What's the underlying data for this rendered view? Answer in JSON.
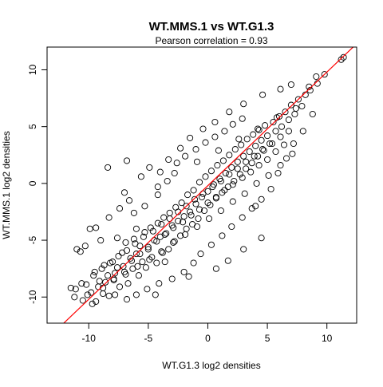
{
  "chart_data": {
    "type": "scatter",
    "title": "WT.MMS.1 vs WT.G1.3",
    "subtitle": "Pearson correlation =  0.93",
    "xlabel": "WT.G1.3 log2 densities",
    "ylabel": "WT.MMS.1 log2 densities",
    "xlim": [
      -13.5,
      12.5
    ],
    "ylim": [
      -12.3,
      12.0
    ],
    "x_ticks": [
      -10,
      -5,
      0,
      5,
      10
    ],
    "y_ticks": [
      -10,
      -5,
      0,
      5,
      10
    ],
    "grid": false,
    "marker": "open-circle",
    "point_color": "#000000",
    "fit_line": {
      "intercept": -0.2,
      "slope": 1.0,
      "color": "#ff0000"
    },
    "pearson_r": 0.93,
    "points": [
      [
        -11.5,
        -9.2
      ],
      [
        -11.2,
        -10.0
      ],
      [
        -10.5,
        -10.3
      ],
      [
        -10.2,
        -8.9
      ],
      [
        -9.8,
        -9.6
      ],
      [
        -9.5,
        -7.8
      ],
      [
        -9.4,
        -10.4
      ],
      [
        -9.1,
        -8.6
      ],
      [
        -8.8,
        -9.2
      ],
      [
        -8.7,
        -7.2
      ],
      [
        -8.4,
        -8.1
      ],
      [
        -8.3,
        -9.9
      ],
      [
        -8.0,
        -6.9
      ],
      [
        -7.9,
        -8.5
      ],
      [
        -7.6,
        -7.4
      ],
      [
        -7.4,
        -9.1
      ],
      [
        -7.2,
        -6.1
      ],
      [
        -7.0,
        -7.8
      ],
      [
        -6.9,
        -5.2
      ],
      [
        -6.7,
        -8.8
      ],
      [
        -6.5,
        -6.6
      ],
      [
        -6.3,
        -7.5
      ],
      [
        -6.2,
        -4.9
      ],
      [
        -6.0,
        -6.2
      ],
      [
        -5.8,
        -8.1
      ],
      [
        -5.7,
        -5.5
      ],
      [
        -5.5,
        -6.9
      ],
      [
        -5.3,
        -4.3
      ],
      [
        -5.2,
        -7.4
      ],
      [
        -5.0,
        -5.8
      ],
      [
        -4.8,
        -3.9
      ],
      [
        -4.7,
        -6.5
      ],
      [
        -4.5,
        -5.0
      ],
      [
        -4.3,
        -7.0
      ],
      [
        -4.2,
        -3.5
      ],
      [
        -4.0,
        -4.7
      ],
      [
        -3.8,
        -6.1
      ],
      [
        -3.7,
        -3.0
      ],
      [
        -3.5,
        -4.4
      ],
      [
        -3.3,
        -5.8
      ],
      [
        -3.2,
        -2.6
      ],
      [
        -3.0,
        -3.7
      ],
      [
        -2.8,
        -5.1
      ],
      [
        -2.7,
        -2.1
      ],
      [
        -2.5,
        -3.3
      ],
      [
        -2.3,
        -4.6
      ],
      [
        -2.2,
        -1.7
      ],
      [
        -2.0,
        -2.9
      ],
      [
        -1.8,
        -4.0
      ],
      [
        -1.7,
        -1.0
      ],
      [
        -1.5,
        -2.5
      ],
      [
        -1.3,
        -3.6
      ],
      [
        -1.2,
        -0.6
      ],
      [
        -1.0,
        -1.8
      ],
      [
        -0.8,
        -3.1
      ],
      [
        -0.7,
        0.1
      ],
      [
        -0.5,
        -1.2
      ],
      [
        -0.3,
        -2.4
      ],
      [
        -0.2,
        0.6
      ],
      [
        0.0,
        -0.7
      ],
      [
        0.2,
        -1.9
      ],
      [
        0.3,
        1.1
      ],
      [
        0.5,
        -0.1
      ],
      [
        0.7,
        -1.3
      ],
      [
        0.8,
        1.6
      ],
      [
        1.0,
        0.4
      ],
      [
        1.2,
        -0.8
      ],
      [
        1.3,
        2.0
      ],
      [
        1.5,
        0.9
      ],
      [
        1.7,
        -0.3
      ],
      [
        1.8,
        2.5
      ],
      [
        2.0,
        1.4
      ],
      [
        2.2,
        0.2
      ],
      [
        2.3,
        3.0
      ],
      [
        2.5,
        1.9
      ],
      [
        2.7,
        0.8
      ],
      [
        2.8,
        3.4
      ],
      [
        3.0,
        2.4
      ],
      [
        3.2,
        1.3
      ],
      [
        3.3,
        3.9
      ],
      [
        3.5,
        2.8
      ],
      [
        3.7,
        1.8
      ],
      [
        3.8,
        4.3
      ],
      [
        4.0,
        3.3
      ],
      [
        4.2,
        2.4
      ],
      [
        4.3,
        4.7
      ],
      [
        4.5,
        3.8
      ],
      [
        4.7,
        2.9
      ],
      [
        4.8,
        5.1
      ],
      [
        5.0,
        4.2
      ],
      [
        5.2,
        3.5
      ],
      [
        5.5,
        5.4
      ],
      [
        5.7,
        4.6
      ],
      [
        6.0,
        5.9
      ],
      [
        6.2,
        5.0
      ],
      [
        6.5,
        6.3
      ],
      [
        6.8,
        5.6
      ],
      [
        7.0,
        6.9
      ],
      [
        7.3,
        6.1
      ],
      [
        7.6,
        7.4
      ],
      [
        7.9,
        6.8
      ],
      [
        8.2,
        7.8
      ],
      [
        8.6,
        8.2
      ],
      [
        9.2,
        8.8
      ],
      [
        9.8,
        9.6
      ],
      [
        11.2,
        10.9
      ],
      [
        11.4,
        11.1
      ]
    ],
    "scatter_points": [
      [
        -11.1,
        -9.3
      ],
      [
        -10.6,
        -8.8
      ],
      [
        -10.1,
        -9.8
      ],
      [
        -9.6,
        -8.1
      ],
      [
        -9.2,
        -9.1
      ],
      [
        -8.9,
        -7.5
      ],
      [
        -8.6,
        -8.7
      ],
      [
        -8.2,
        -7.0
      ],
      [
        -7.8,
        -7.9
      ],
      [
        -7.5,
        -6.4
      ],
      [
        -7.1,
        -7.3
      ],
      [
        -6.8,
        -5.9
      ],
      [
        -6.4,
        -6.8
      ],
      [
        -6.1,
        -5.3
      ],
      [
        -5.7,
        -6.2
      ],
      [
        -5.4,
        -4.7
      ],
      [
        -5.0,
        -5.6
      ],
      [
        -4.6,
        -4.2
      ],
      [
        -4.3,
        -5.1
      ],
      [
        -3.9,
        -3.6
      ],
      [
        -3.6,
        -4.5
      ],
      [
        -3.2,
        -3.1
      ],
      [
        -2.9,
        -3.9
      ],
      [
        -2.5,
        -2.5
      ],
      [
        -2.1,
        -3.4
      ],
      [
        -1.8,
        -2.0
      ],
      [
        -1.4,
        -2.8
      ],
      [
        -1.1,
        -1.4
      ],
      [
        -0.7,
        -2.3
      ],
      [
        -0.4,
        -0.9
      ],
      [
        0.0,
        -1.7
      ],
      [
        0.4,
        -0.3
      ],
      [
        0.7,
        -1.2
      ],
      [
        1.1,
        0.2
      ],
      [
        1.4,
        -0.6
      ],
      [
        1.8,
        0.8
      ],
      [
        2.1,
        -0.1
      ],
      [
        2.5,
        1.3
      ],
      [
        2.9,
        0.5
      ],
      [
        3.2,
        1.9
      ],
      [
        3.6,
        1.0
      ],
      [
        3.9,
        2.4
      ],
      [
        4.3,
        1.6
      ],
      [
        4.6,
        3.0
      ],
      [
        5.0,
        2.1
      ],
      [
        5.4,
        3.5
      ],
      [
        5.7,
        2.8
      ],
      [
        6.1,
        4.1
      ],
      [
        6.4,
        3.4
      ],
      [
        6.8,
        4.6
      ],
      [
        -4.9,
        1.4
      ],
      [
        -8.3,
        -3.0
      ],
      [
        -7.4,
        -2.2
      ],
      [
        -6.6,
        -1.5
      ],
      [
        -6.0,
        -4.0
      ],
      [
        -9.0,
        -5.0
      ],
      [
        -9.9,
        -4.0
      ],
      [
        -7.6,
        -4.8
      ],
      [
        -6.2,
        -2.6
      ],
      [
        -5.3,
        -2.0
      ],
      [
        -4.2,
        -1.0
      ],
      [
        -3.4,
        0.2
      ],
      [
        -2.6,
        1.8
      ],
      [
        -1.9,
        2.4
      ],
      [
        -1.0,
        3.0
      ],
      [
        -0.2,
        3.6
      ],
      [
        0.6,
        4.1
      ],
      [
        1.4,
        4.6
      ],
      [
        2.1,
        5.2
      ],
      [
        2.9,
        5.7
      ],
      [
        -2.0,
        -7.8
      ],
      [
        -1.2,
        -7.0
      ],
      [
        -0.6,
        -6.2
      ],
      [
        0.3,
        -5.4
      ],
      [
        1.2,
        -4.6
      ],
      [
        2.0,
        -3.8
      ],
      [
        2.9,
        -3.0
      ],
      [
        3.7,
        -2.2
      ],
      [
        4.5,
        -1.4
      ],
      [
        5.3,
        -0.5
      ],
      [
        -3.0,
        -8.4
      ],
      [
        -4.1,
        -8.8
      ],
      [
        -5.1,
        -9.3
      ],
      [
        -6.0,
        -9.8
      ],
      [
        -3.6,
        -6.9
      ],
      [
        -0.4,
        4.8
      ],
      [
        -1.5,
        4.0
      ],
      [
        -2.3,
        3.1
      ],
      [
        -3.3,
        2.1
      ],
      [
        -4.0,
        1.0
      ],
      [
        0.6,
        5.4
      ],
      [
        1.8,
        6.3
      ],
      [
        3.0,
        7.0
      ],
      [
        4.6,
        7.8
      ],
      [
        6.1,
        8.3
      ],
      [
        7.0,
        8.7
      ],
      [
        8.5,
        8.5
      ],
      [
        9.1,
        9.4
      ],
      [
        4.0,
        -2.0
      ],
      [
        5.9,
        0.9
      ],
      [
        6.6,
        2.2
      ],
      [
        7.2,
        3.5
      ],
      [
        8.0,
        4.6
      ],
      [
        8.8,
        6.1
      ],
      [
        -10.7,
        -6.0
      ],
      [
        -11.0,
        -5.8
      ],
      [
        -10.3,
        -5.5
      ],
      [
        -9.4,
        -3.9
      ],
      [
        -6.8,
        2.0
      ],
      [
        -8.4,
        1.4
      ],
      [
        -4.2,
        -0.3
      ],
      [
        -5.6,
        0.6
      ],
      [
        -7.0,
        -0.8
      ],
      [
        -2.8,
        0.9
      ],
      [
        -0.9,
        1.9
      ],
      [
        0.9,
        2.9
      ],
      [
        2.6,
        3.9
      ],
      [
        4.2,
        4.8
      ],
      [
        5.8,
        5.8
      ],
      [
        7.4,
        6.6
      ],
      [
        -7.9,
        -8.4
      ],
      [
        -6.9,
        -8.0
      ],
      [
        -5.9,
        -7.3
      ],
      [
        -4.9,
        -6.7
      ],
      [
        -3.9,
        -6.0
      ],
      [
        -2.9,
        -5.2
      ],
      [
        -1.9,
        -4.5
      ],
      [
        -0.9,
        -3.8
      ],
      [
        0.1,
        -3.1
      ],
      [
        1.1,
        -2.4
      ],
      [
        2.1,
        -1.6
      ],
      [
        3.1,
        -0.9
      ],
      [
        4.1,
        0.0
      ],
      [
        5.1,
        0.7
      ],
      [
        6.1,
        1.6
      ],
      [
        7.1,
        2.6
      ],
      [
        -1.6,
        -8.2
      ],
      [
        -4.4,
        -9.8
      ],
      [
        -6.8,
        -10.2
      ],
      [
        -7.8,
        -9.8
      ],
      [
        -8.8,
        -9.7
      ],
      [
        -9.7,
        -10.6
      ],
      [
        0.7,
        -7.5
      ],
      [
        1.7,
        -6.8
      ],
      [
        3.0,
        -5.8
      ],
      [
        4.5,
        -4.8
      ]
    ]
  }
}
